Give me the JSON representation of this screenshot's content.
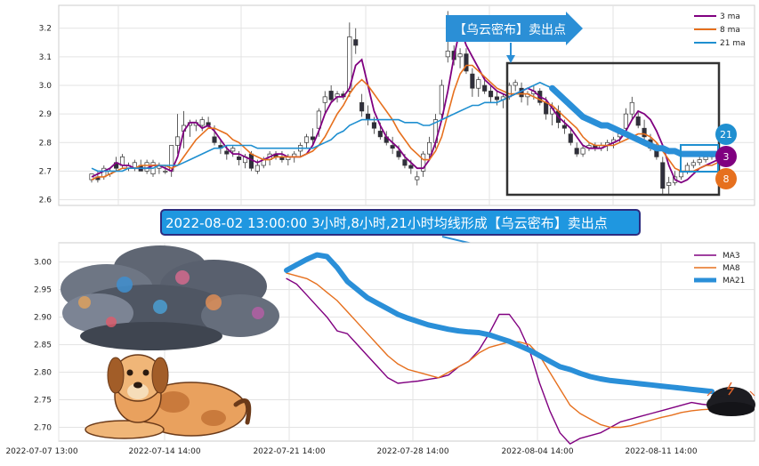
{
  "colors": {
    "ma3": "#800080",
    "ma8": "#e6701e",
    "ma21": "#1f8fd0",
    "ma21_thick": "#2a8fd8",
    "callout_fill": "#2b8fd6",
    "banner_fill": "#1f97e0",
    "banner_border": "#2d2d80",
    "bull": "#ffffff",
    "bear": "#2f2f3c",
    "rect": "#333333"
  },
  "signal_callout": {
    "text": "【乌云密布】卖出点"
  },
  "banner": {
    "text": "2022-08-02 13:00:00 3小时,8小时,21小时均线形成【乌云密布】卖出点"
  },
  "badges": [
    {
      "label": "21",
      "color": "#1f8fd0"
    },
    {
      "label": "3",
      "color": "#800080"
    },
    {
      "label": "8",
      "color": "#e6701e"
    }
  ],
  "illustrations": [
    "storm-cloud",
    "dog",
    "dark-cloud"
  ],
  "chart_data": [
    {
      "type": "candlestick",
      "ylim": [
        2.58,
        3.28
      ],
      "yticks": [
        "3.2",
        "3.1",
        "3.0",
        "2.9",
        "2.8",
        "2.7",
        "2.6"
      ],
      "grid": true,
      "legend": {
        "placement": "top-right",
        "entries": [
          "3 ma",
          "8 ma",
          "21 ma"
        ]
      },
      "candles": [
        [
          2.67,
          2.69,
          2.66,
          2.69
        ],
        [
          2.68,
          2.7,
          2.66,
          2.67
        ],
        [
          2.68,
          2.72,
          2.67,
          2.71
        ],
        [
          2.69,
          2.71,
          2.68,
          2.7
        ],
        [
          2.73,
          2.75,
          2.7,
          2.71
        ],
        [
          2.72,
          2.76,
          2.71,
          2.75
        ],
        [
          2.71,
          2.73,
          2.7,
          2.72
        ],
        [
          2.71,
          2.74,
          2.7,
          2.73
        ],
        [
          2.72,
          2.74,
          2.7,
          2.7
        ],
        [
          2.7,
          2.74,
          2.69,
          2.73
        ],
        [
          2.69,
          2.74,
          2.68,
          2.73
        ],
        [
          2.71,
          2.73,
          2.69,
          2.72
        ],
        [
          2.7,
          2.72,
          2.69,
          2.7
        ],
        [
          2.7,
          2.79,
          2.68,
          2.79
        ],
        [
          2.79,
          2.9,
          2.76,
          2.82
        ],
        [
          2.84,
          2.91,
          2.78,
          2.86
        ],
        [
          2.86,
          2.88,
          2.82,
          2.87
        ],
        [
          2.86,
          2.88,
          2.84,
          2.87
        ],
        [
          2.86,
          2.89,
          2.84,
          2.88
        ],
        [
          2.87,
          2.89,
          2.85,
          2.86
        ],
        [
          2.82,
          2.86,
          2.79,
          2.8
        ],
        [
          2.79,
          2.81,
          2.76,
          2.78
        ],
        [
          2.77,
          2.79,
          2.74,
          2.76
        ],
        [
          2.77,
          2.79,
          2.75,
          2.78
        ],
        [
          2.75,
          2.77,
          2.72,
          2.74
        ],
        [
          2.73,
          2.76,
          2.71,
          2.75
        ],
        [
          2.76,
          2.77,
          2.7,
          2.71
        ],
        [
          2.7,
          2.74,
          2.69,
          2.72
        ],
        [
          2.72,
          2.75,
          2.71,
          2.74
        ],
        [
          2.74,
          2.77,
          2.72,
          2.76
        ],
        [
          2.76,
          2.77,
          2.74,
          2.75
        ],
        [
          2.75,
          2.77,
          2.73,
          2.74
        ],
        [
          2.74,
          2.76,
          2.72,
          2.75
        ],
        [
          2.75,
          2.77,
          2.73,
          2.76
        ],
        [
          2.77,
          2.8,
          2.75,
          2.79
        ],
        [
          2.8,
          2.83,
          2.78,
          2.82
        ],
        [
          2.82,
          2.85,
          2.79,
          2.81
        ],
        [
          2.85,
          2.92,
          2.82,
          2.91
        ],
        [
          2.94,
          2.98,
          2.9,
          2.96
        ],
        [
          2.98,
          3.0,
          2.94,
          2.95
        ],
        [
          2.96,
          2.98,
          2.94,
          2.97
        ],
        [
          2.97,
          2.98,
          2.95,
          2.96
        ],
        [
          2.98,
          3.22,
          2.96,
          3.17
        ],
        [
          3.16,
          3.2,
          3.11,
          3.14
        ],
        [
          2.94,
          2.97,
          2.89,
          2.91
        ],
        [
          2.9,
          2.93,
          2.86,
          2.88
        ],
        [
          2.87,
          2.89,
          2.83,
          2.85
        ],
        [
          2.84,
          2.87,
          2.81,
          2.82
        ],
        [
          2.82,
          2.84,
          2.79,
          2.8
        ],
        [
          2.79,
          2.82,
          2.76,
          2.78
        ],
        [
          2.77,
          2.79,
          2.74,
          2.75
        ],
        [
          2.74,
          2.76,
          2.71,
          2.72
        ],
        [
          2.72,
          2.74,
          2.69,
          2.71
        ],
        [
          2.67,
          2.7,
          2.65,
          2.68
        ],
        [
          2.7,
          2.77,
          2.68,
          2.76
        ],
        [
          2.76,
          2.82,
          2.74,
          2.8
        ],
        [
          2.8,
          2.9,
          2.78,
          2.88
        ],
        [
          2.9,
          3.02,
          2.88,
          3.0
        ],
        [
          3.1,
          3.26,
          3.08,
          3.12
        ],
        [
          3.12,
          3.14,
          3.07,
          3.09
        ],
        [
          3.1,
          3.13,
          3.06,
          3.11
        ],
        [
          3.11,
          3.13,
          3.04,
          3.05
        ],
        [
          3.04,
          3.06,
          2.96,
          2.99
        ],
        [
          2.99,
          3.03,
          2.96,
          3.02
        ],
        [
          3.0,
          3.03,
          2.97,
          2.98
        ],
        [
          2.98,
          3.0,
          2.94,
          2.96
        ],
        [
          2.96,
          2.98,
          2.93,
          2.95
        ],
        [
          2.95,
          2.97,
          2.92,
          2.96
        ],
        [
          2.96,
          3.01,
          2.95,
          3.0
        ],
        [
          3.0,
          3.02,
          2.98,
          3.01
        ],
        [
          2.99,
          3.01,
          2.94,
          2.96
        ],
        [
          2.96,
          2.98,
          2.93,
          2.97
        ],
        [
          2.97,
          3.0,
          2.95,
          2.98
        ],
        [
          2.98,
          2.99,
          2.93,
          2.94
        ],
        [
          2.94,
          2.96,
          2.88,
          2.9
        ],
        [
          2.9,
          2.94,
          2.86,
          2.92
        ],
        [
          2.91,
          2.93,
          2.85,
          2.87
        ],
        [
          2.86,
          2.88,
          2.83,
          2.85
        ],
        [
          2.83,
          2.85,
          2.79,
          2.8
        ],
        [
          2.78,
          2.8,
          2.75,
          2.76
        ],
        [
          2.76,
          2.79,
          2.75,
          2.78
        ],
        [
          2.78,
          2.8,
          2.77,
          2.79
        ],
        [
          2.79,
          2.8,
          2.77,
          2.78
        ],
        [
          2.78,
          2.8,
          2.77,
          2.79
        ],
        [
          2.79,
          2.81,
          2.77,
          2.8
        ],
        [
          2.8,
          2.82,
          2.78,
          2.81
        ],
        [
          2.82,
          2.85,
          2.8,
          2.84
        ],
        [
          2.85,
          2.92,
          2.83,
          2.9
        ],
        [
          2.9,
          2.96,
          2.88,
          2.94
        ],
        [
          2.89,
          2.91,
          2.85,
          2.86
        ],
        [
          2.85,
          2.88,
          2.8,
          2.82
        ],
        [
          2.81,
          2.83,
          2.77,
          2.78
        ],
        [
          2.78,
          2.8,
          2.74,
          2.75
        ],
        [
          2.73,
          2.75,
          2.62,
          2.64
        ],
        [
          2.65,
          2.68,
          2.62,
          2.66
        ],
        [
          2.66,
          2.7,
          2.65,
          2.68
        ],
        [
          2.68,
          2.71,
          2.67,
          2.7
        ],
        [
          2.7,
          2.73,
          2.69,
          2.72
        ],
        [
          2.72,
          2.74,
          2.71,
          2.73
        ],
        [
          2.73,
          2.75,
          2.72,
          2.74
        ],
        [
          2.74,
          2.76,
          2.73,
          2.75
        ],
        [
          2.75,
          2.77,
          2.74,
          2.76
        ]
      ],
      "series": [
        {
          "name": "3 ma",
          "values": [
            2.68,
            2.69,
            2.7,
            2.71,
            2.73,
            2.72,
            2.72,
            2.71,
            2.71,
            2.71,
            2.72,
            2.72,
            2.71,
            2.7,
            2.75,
            2.84,
            2.87,
            2.87,
            2.85,
            2.86,
            2.84,
            2.81,
            2.78,
            2.76,
            2.76,
            2.75,
            2.74,
            2.73,
            2.74,
            2.75,
            2.76,
            2.76,
            2.75,
            2.75,
            2.75,
            2.76,
            2.79,
            2.84,
            2.9,
            2.94,
            2.96,
            2.96,
            2.99,
            3.07,
            3.09,
            3.0,
            2.91,
            2.86,
            2.82,
            2.8,
            2.78,
            2.75,
            2.73,
            2.71,
            2.71,
            2.74,
            2.8,
            2.88,
            2.98,
            3.1,
            3.2,
            3.14,
            3.1,
            3.06,
            3.02,
            3.0,
            2.98,
            2.97,
            2.96,
            2.97,
            2.98,
            2.99,
            2.98,
            2.96,
            2.95,
            2.92,
            2.89,
            2.87,
            2.85,
            2.82,
            2.79,
            2.78,
            2.78,
            2.78,
            2.79,
            2.8,
            2.81,
            2.84,
            2.88,
            2.91,
            2.9,
            2.88,
            2.84,
            2.79,
            2.72,
            2.67,
            2.66,
            2.67,
            2.69,
            2.71,
            2.72,
            2.73,
            2.74,
            2.75
          ]
        },
        {
          "name": "8 ma",
          "values": [
            2.67,
            2.68,
            2.68,
            2.69,
            2.7,
            2.71,
            2.71,
            2.71,
            2.72,
            2.72,
            2.72,
            2.72,
            2.72,
            2.71,
            2.72,
            2.75,
            2.78,
            2.81,
            2.83,
            2.85,
            2.85,
            2.84,
            2.83,
            2.81,
            2.8,
            2.78,
            2.76,
            2.75,
            2.74,
            2.74,
            2.75,
            2.75,
            2.75,
            2.75,
            2.75,
            2.76,
            2.77,
            2.79,
            2.82,
            2.86,
            2.9,
            2.93,
            2.97,
            3.0,
            3.02,
            3.0,
            2.97,
            2.94,
            2.91,
            2.88,
            2.84,
            2.81,
            2.78,
            2.76,
            2.74,
            2.74,
            2.77,
            2.82,
            2.9,
            2.98,
            3.04,
            3.07,
            3.07,
            3.05,
            3.03,
            3.01,
            2.99,
            2.98,
            2.97,
            2.97,
            2.97,
            2.97,
            2.96,
            2.95,
            2.94,
            2.93,
            2.91,
            2.89,
            2.87,
            2.85,
            2.82,
            2.8,
            2.79,
            2.79,
            2.79,
            2.79,
            2.8,
            2.81,
            2.82,
            2.83,
            2.83,
            2.82,
            2.8,
            2.77,
            2.74,
            2.71,
            2.7,
            2.7,
            2.7,
            2.71,
            2.72,
            2.72,
            2.73,
            2.74
          ]
        },
        {
          "name": "21 ma",
          "values": [
            2.71,
            2.7,
            2.7,
            2.7,
            2.7,
            2.7,
            2.71,
            2.71,
            2.71,
            2.71,
            2.71,
            2.72,
            2.72,
            2.72,
            2.72,
            2.73,
            2.74,
            2.75,
            2.76,
            2.77,
            2.78,
            2.78,
            2.79,
            2.79,
            2.79,
            2.79,
            2.79,
            2.78,
            2.78,
            2.78,
            2.78,
            2.78,
            2.78,
            2.78,
            2.78,
            2.78,
            2.78,
            2.79,
            2.8,
            2.81,
            2.83,
            2.84,
            2.86,
            2.87,
            2.88,
            2.88,
            2.88,
            2.88,
            2.88,
            2.88,
            2.88,
            2.87,
            2.87,
            2.87,
            2.86,
            2.86,
            2.87,
            2.88,
            2.89,
            2.9,
            2.91,
            2.92,
            2.93,
            2.93,
            2.94,
            2.94,
            2.94,
            2.95,
            2.96,
            2.97,
            2.98,
            2.99,
            3.0,
            3.01,
            3.0,
            2.99,
            2.97,
            2.95,
            2.93,
            2.91,
            2.89,
            2.88,
            2.87,
            2.86,
            2.86,
            2.85,
            2.84,
            2.83,
            2.82,
            2.81,
            2.8,
            2.79,
            2.78,
            2.78,
            2.77,
            2.77,
            2.76,
            2.76,
            2.76,
            2.76,
            2.76,
            2.76,
            2.76,
            2.76
          ]
        }
      ]
    },
    {
      "type": "line",
      "ylim": [
        2.675,
        3.035
      ],
      "yticks": [
        "3.00",
        "2.95",
        "2.90",
        "2.85",
        "2.80",
        "2.75",
        "2.70"
      ],
      "xticks": [
        "2022-07-07 13:00",
        "2022-07-14 14:00",
        "2022-07-21 14:00",
        "2022-07-28 14:00",
        "2022-08-04 14:00",
        "2022-08-11 14:00"
      ],
      "grid": true,
      "legend": {
        "placement": "top-right",
        "entries": [
          "MA3",
          "MA8",
          "MA21"
        ]
      },
      "series": [
        {
          "name": "MA3",
          "values": [
            2.97,
            2.96,
            2.94,
            2.92,
            2.9,
            2.875,
            2.87,
            2.85,
            2.83,
            2.81,
            2.79,
            2.78,
            2.782,
            2.784,
            2.787,
            2.79,
            2.795,
            2.81,
            2.82,
            2.84,
            2.87,
            2.905,
            2.905,
            2.88,
            2.84,
            2.78,
            2.73,
            2.69,
            2.67,
            2.68,
            2.685,
            2.69,
            2.7,
            2.71,
            2.715,
            2.72,
            2.725,
            2.73,
            2.735,
            2.74,
            2.745,
            2.742,
            2.74
          ]
        },
        {
          "name": "MA8",
          "values": [
            2.98,
            2.975,
            2.97,
            2.96,
            2.945,
            2.93,
            2.91,
            2.89,
            2.87,
            2.85,
            2.83,
            2.815,
            2.805,
            2.8,
            2.795,
            2.79,
            2.8,
            2.81,
            2.82,
            2.835,
            2.845,
            2.85,
            2.855,
            2.855,
            2.85,
            2.83,
            2.8,
            2.77,
            2.74,
            2.725,
            2.715,
            2.705,
            2.7,
            2.7,
            2.703,
            2.708,
            2.713,
            2.718,
            2.722,
            2.727,
            2.73,
            2.732,
            2.733
          ]
        },
        {
          "name": "MA21",
          "values": [
            2.985,
            2.995,
            3.005,
            3.013,
            3.01,
            2.99,
            2.965,
            2.95,
            2.935,
            2.925,
            2.915,
            2.905,
            2.898,
            2.892,
            2.886,
            2.882,
            2.878,
            2.875,
            2.873,
            2.872,
            2.868,
            2.862,
            2.856,
            2.848,
            2.84,
            2.83,
            2.82,
            2.81,
            2.805,
            2.798,
            2.792,
            2.788,
            2.785,
            2.783,
            2.781,
            2.779,
            2.777,
            2.775,
            2.773,
            2.771,
            2.769,
            2.767,
            2.765
          ]
        }
      ]
    }
  ]
}
